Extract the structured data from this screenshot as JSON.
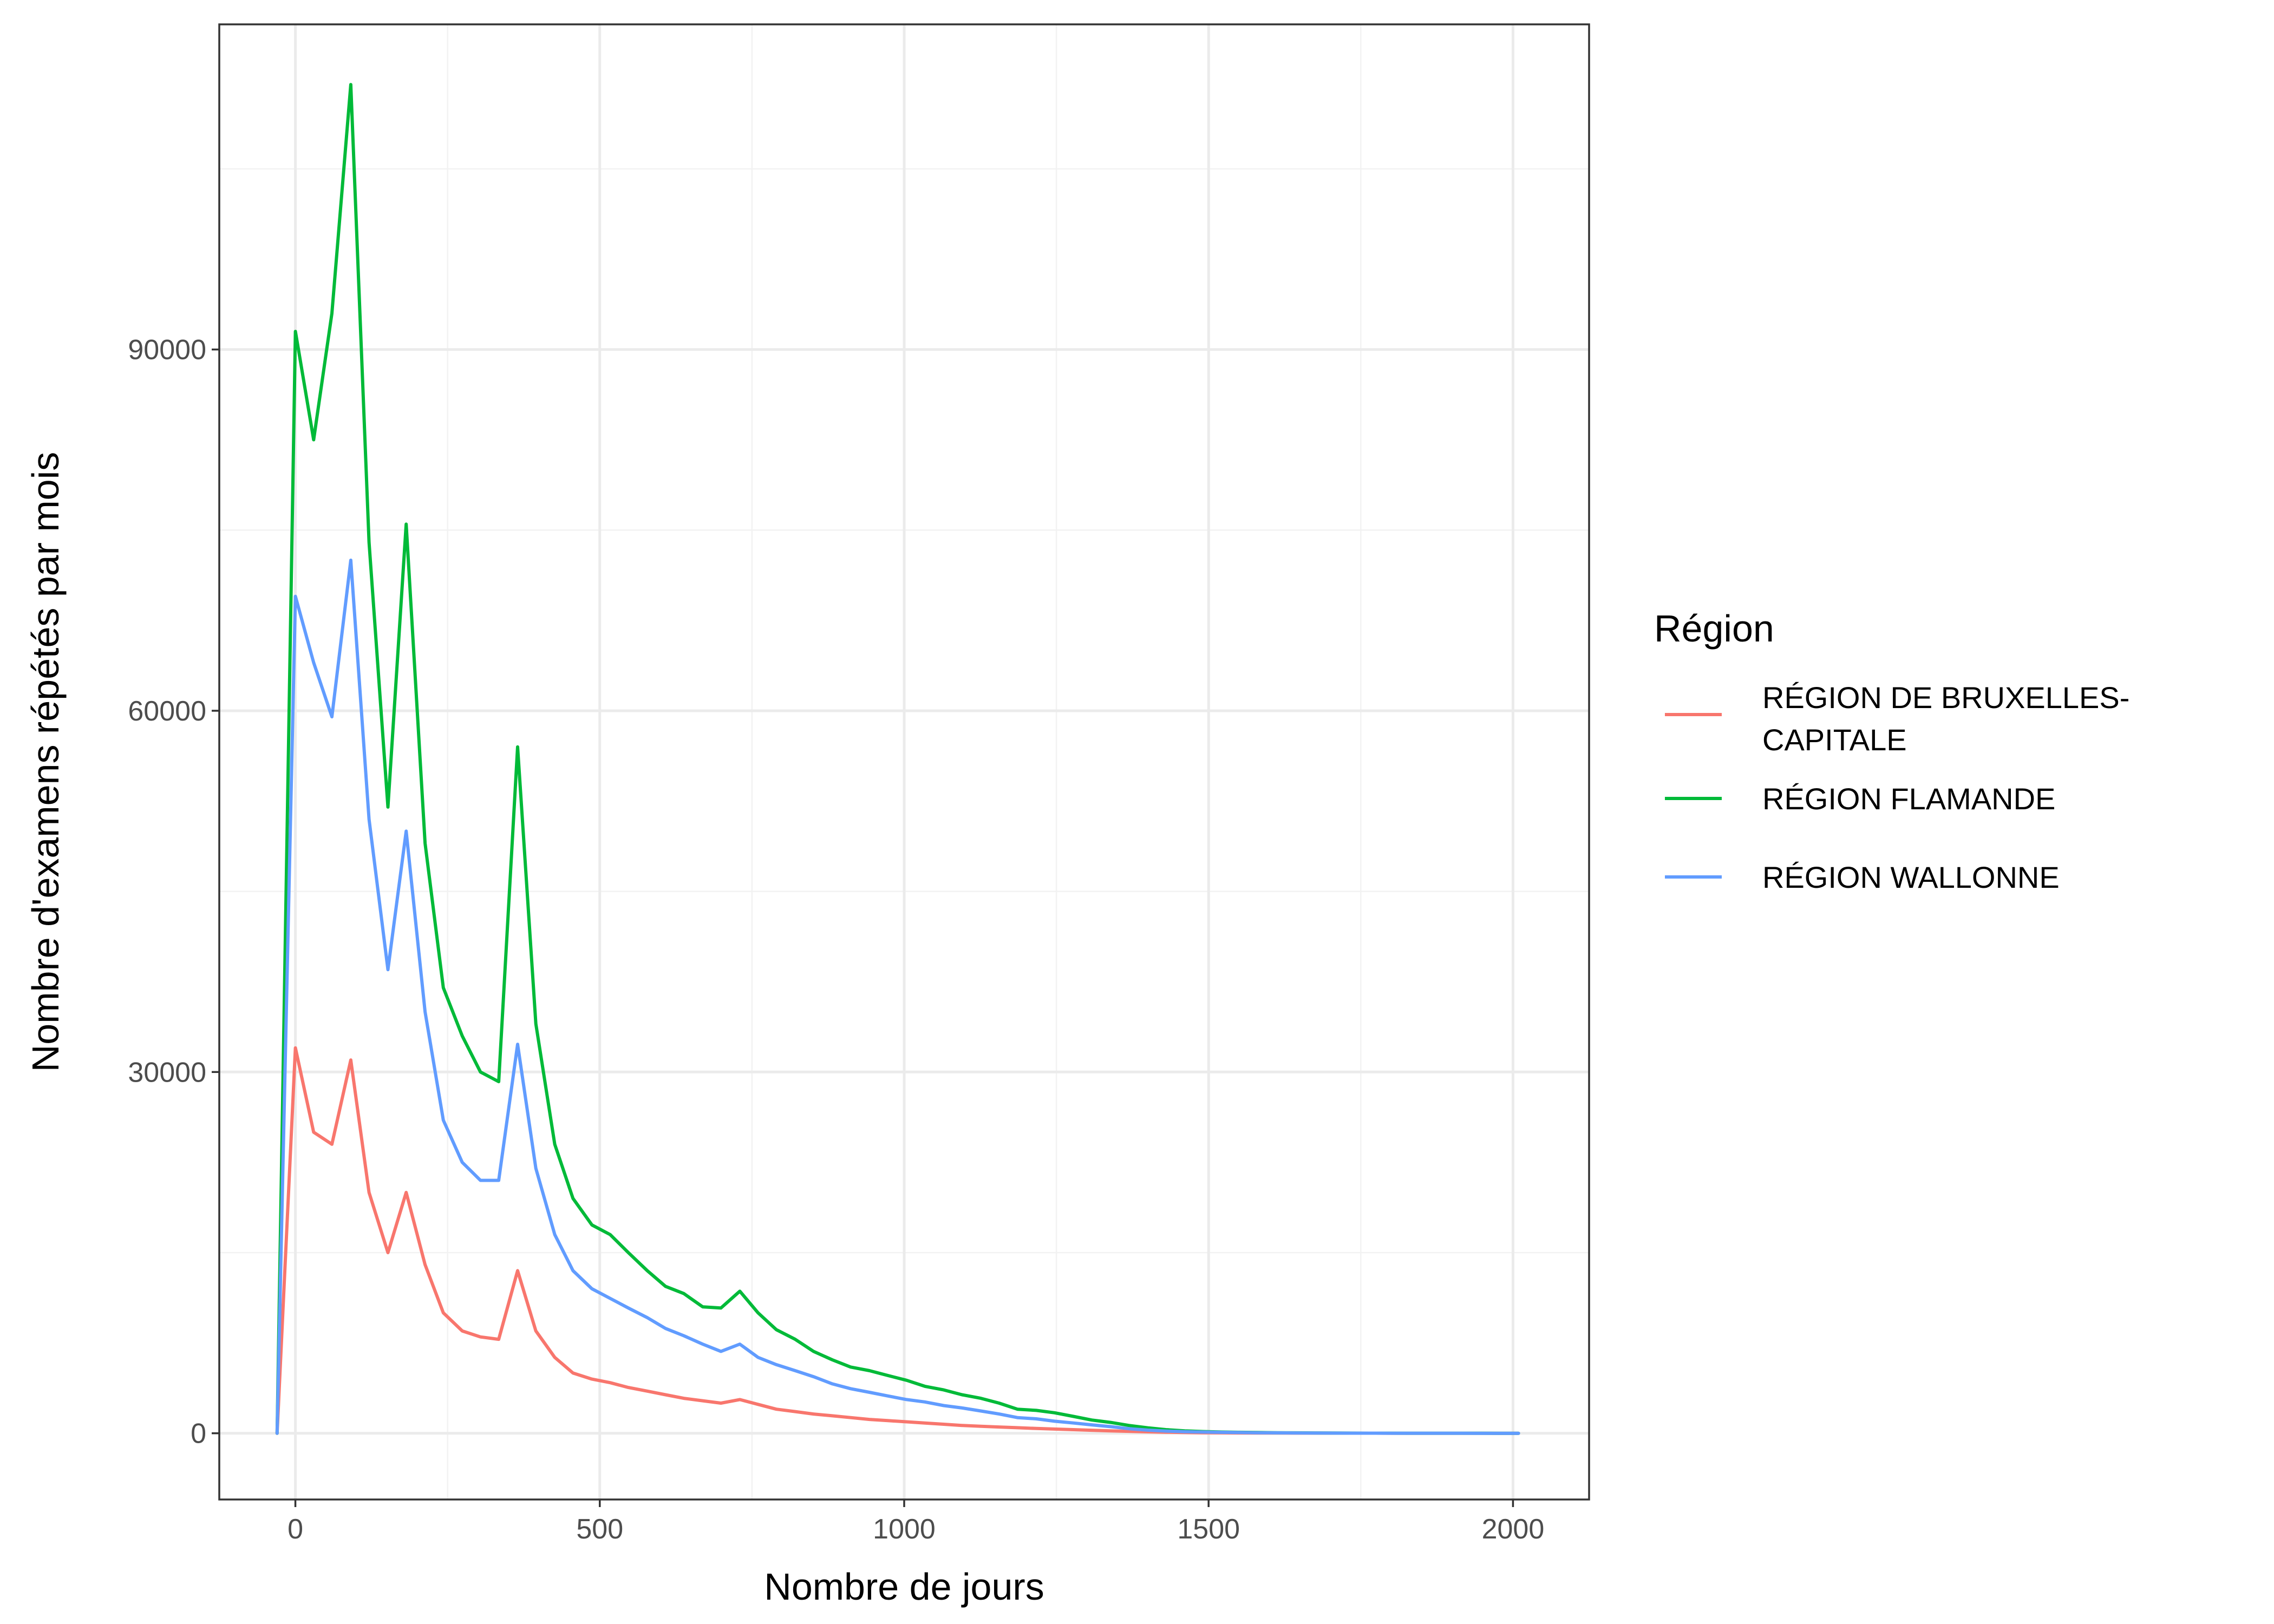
{
  "chart_data": {
    "type": "line",
    "title": "",
    "xlabel": "Nombre de jours",
    "ylabel": "Nombre d'examens répétés par mois",
    "xlim": [
      -125,
      2125
    ],
    "ylim": [
      -5500,
      117000
    ],
    "x_ticks": [
      0,
      500,
      1000,
      1500,
      2000
    ],
    "y_ticks": [
      0,
      30000,
      60000,
      90000
    ],
    "x_tick_labels": [
      "0",
      "500",
      "1000",
      "1500",
      "2000"
    ],
    "y_tick_labels": [
      "0",
      "30000",
      "60000",
      "90000"
    ],
    "grid": true,
    "legend": {
      "title": "Région",
      "position": "right"
    },
    "series": [
      {
        "name_lines": [
          "RÉGION DE BRUXELLES-",
          "CAPITALE"
        ],
        "color": "#F8766D",
        "x": [
          -30,
          0,
          30,
          60,
          91,
          121,
          152,
          182,
          213,
          243,
          274,
          304,
          334,
          365,
          395,
          426,
          456,
          487,
          517,
          547,
          578,
          608,
          638,
          669,
          699,
          730,
          760,
          790,
          821,
          851,
          882,
          912,
          943,
          973,
          1004,
          1034,
          1065,
          1095,
          1126,
          1156,
          1186,
          1217,
          1247,
          1278,
          1308,
          1339,
          1369,
          1400,
          1430,
          1461,
          1491,
          1521,
          1552,
          1582,
          1613,
          1643,
          1674,
          1704,
          1735,
          1765,
          1796,
          1826,
          1856,
          1887,
          1917,
          1948,
          1978,
          2009
        ],
        "y": [
          0,
          32000,
          25000,
          24000,
          31000,
          20000,
          15000,
          20000,
          14000,
          10000,
          8500,
          8000,
          7800,
          13500,
          8500,
          6300,
          5000,
          4500,
          4200,
          3800,
          3500,
          3200,
          2900,
          2700,
          2500,
          2800,
          2400,
          2000,
          1800,
          1600,
          1450,
          1300,
          1150,
          1050,
          950,
          850,
          750,
          650,
          580,
          520,
          460,
          400,
          350,
          300,
          250,
          200,
          160,
          120,
          90,
          60,
          45,
          35,
          25,
          20,
          15,
          12,
          10,
          8,
          6,
          5,
          4,
          3,
          2,
          2,
          1,
          1,
          0,
          0
        ]
      },
      {
        "name": "RÉGION FLAMANDE",
        "color": "#00BA38",
        "x": [
          -30,
          0,
          30,
          60,
          91,
          121,
          152,
          182,
          213,
          243,
          274,
          304,
          334,
          365,
          395,
          426,
          456,
          487,
          517,
          547,
          578,
          608,
          638,
          669,
          699,
          730,
          760,
          790,
          821,
          851,
          882,
          912,
          943,
          973,
          1004,
          1034,
          1065,
          1095,
          1126,
          1156,
          1186,
          1217,
          1247,
          1278,
          1308,
          1339,
          1369,
          1400,
          1430,
          1461,
          1491,
          1521,
          1552,
          1582,
          1613,
          1643,
          1674,
          1704,
          1735,
          1765,
          1796,
          1826,
          1856,
          1887,
          1917,
          1948,
          1978,
          2009
        ],
        "y": [
          0,
          91500,
          82500,
          93000,
          112000,
          74000,
          52000,
          75500,
          49000,
          37000,
          33000,
          30000,
          29200,
          57000,
          34000,
          24000,
          19500,
          17300,
          16500,
          15000,
          13500,
          12200,
          11600,
          10500,
          10400,
          11800,
          10000,
          8600,
          7800,
          6800,
          6100,
          5500,
          5200,
          4800,
          4400,
          3900,
          3600,
          3200,
          2900,
          2500,
          2000,
          1900,
          1700,
          1400,
          1100,
          900,
          650,
          450,
          300,
          200,
          140,
          100,
          80,
          60,
          45,
          35,
          25,
          18,
          12,
          8,
          6,
          4,
          3,
          2,
          1,
          1,
          0,
          0
        ]
      },
      {
        "name": "RÉGION WALLONNE",
        "color": "#619CFF",
        "x": [
          -30,
          0,
          30,
          60,
          91,
          121,
          152,
          182,
          213,
          243,
          274,
          304,
          334,
          365,
          395,
          426,
          456,
          487,
          517,
          547,
          578,
          608,
          638,
          669,
          699,
          730,
          760,
          790,
          821,
          851,
          882,
          912,
          943,
          973,
          1004,
          1034,
          1065,
          1095,
          1126,
          1156,
          1186,
          1217,
          1247,
          1278,
          1308,
          1339,
          1369,
          1400,
          1430,
          1461,
          1491,
          1521,
          1552,
          1582,
          1613,
          1643,
          1674,
          1704,
          1735,
          1765,
          1796,
          1826,
          1856,
          1887,
          1917,
          1948,
          1978,
          2009
        ],
        "y": [
          0,
          69500,
          64000,
          59500,
          72500,
          51000,
          38500,
          50000,
          35000,
          26000,
          22500,
          21000,
          21000,
          32300,
          22000,
          16500,
          13500,
          12000,
          11200,
          10400,
          9600,
          8700,
          8100,
          7400,
          6800,
          7400,
          6300,
          5700,
          5200,
          4700,
          4100,
          3700,
          3400,
          3100,
          2800,
          2600,
          2300,
          2100,
          1850,
          1600,
          1300,
          1200,
          1000,
          850,
          700,
          550,
          380,
          260,
          180,
          130,
          100,
          80,
          60,
          45,
          35,
          25,
          18,
          12,
          8,
          6,
          4,
          3,
          2,
          1,
          1,
          0,
          0,
          0
        ]
      }
    ]
  }
}
